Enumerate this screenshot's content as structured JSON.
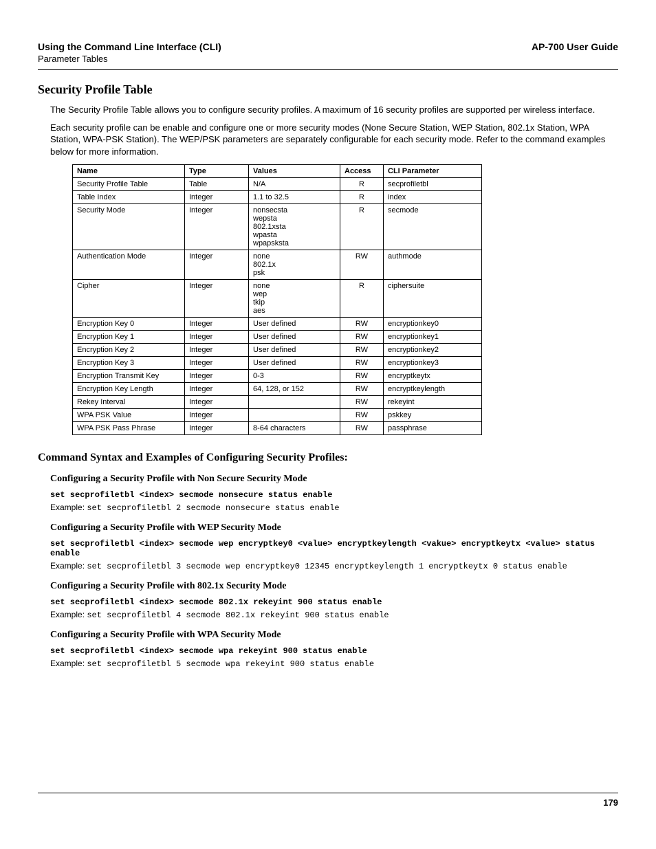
{
  "header": {
    "left": "Using the Command Line Interface (CLI)",
    "right": "AP-700 User Guide",
    "sub": "Parameter Tables"
  },
  "section_title": "Security Profile Table",
  "intro_paragraphs": [
    "The Security Profile Table allows you to configure security profiles. A maximum of 16 security profiles are supported per wireless interface.",
    "Each security profile can be enable and configure one or more security modes (None Secure Station, WEP Station, 802.1x Station, WPA Station, WPA-PSK Station). The WEP/PSK parameters are separately configurable for each security mode. Refer to the command examples below for more information."
  ],
  "table": {
    "columns": [
      "Name",
      "Type",
      "Values",
      "Access",
      "CLI Parameter"
    ],
    "rows": [
      [
        "Security Profile Table",
        "Table",
        "N/A",
        "R",
        "secprofiletbl"
      ],
      [
        "Table Index",
        "Integer",
        "1.1 to 32.5",
        "R",
        "index"
      ],
      [
        "Security Mode",
        "Integer",
        "nonsecsta\nwepsta\n802.1xsta\nwpasta\nwpapsksta",
        "R",
        "secmode"
      ],
      [
        "Authentication Mode",
        "Integer",
        "none\n802.1x\npsk",
        "RW",
        "authmode"
      ],
      [
        "Cipher",
        "Integer",
        "none\nwep\ntkip\naes",
        "R",
        "ciphersuite"
      ],
      [
        "Encryption Key 0",
        "Integer",
        "User defined",
        "RW",
        "encryptionkey0"
      ],
      [
        "Encryption Key 1",
        "Integer",
        "User defined",
        "RW",
        "encryptionkey1"
      ],
      [
        "Encryption Key 2",
        "Integer",
        "User defined",
        "RW",
        "encryptionkey2"
      ],
      [
        "Encryption Key 3",
        "Integer",
        "User defined",
        "RW",
        "encryptionkey3"
      ],
      [
        "Encryption Transmit Key",
        "Integer",
        "0-3",
        "RW",
        "encryptkeytx"
      ],
      [
        "Encryption Key Length",
        "Integer",
        "64, 128, or 152",
        "RW",
        "encryptkeylength"
      ],
      [
        "Rekey Interval",
        "Integer",
        "",
        "RW",
        "rekeyint"
      ],
      [
        "WPA PSK Value",
        "Integer",
        "",
        "RW",
        "pskkey"
      ],
      [
        "WPA PSK Pass Phrase",
        "Integer",
        "8-64 characters",
        "RW",
        "passphrase"
      ]
    ]
  },
  "syntax_heading": "Command Syntax and Examples of Configuring Security Profiles:",
  "examples": [
    {
      "title": "Configuring a Security Profile with Non Secure Security Mode",
      "cmd": "set secprofiletbl <index> secmode nonsecure status enable",
      "example_label": "Example:",
      "example_code": "set secprofiletbl 2 secmode nonsecure status enable"
    },
    {
      "title": "Configuring a Security Profile with WEP Security Mode",
      "cmd": "set secprofiletbl <index> secmode wep encryptkey0 <value> encryptkeylength <vakue> encryptkeytx <value> status enable",
      "example_label": "Example:",
      "example_code": "set secprofiletbl 3 secmode wep encryptkey0 12345 encryptkeylength 1 encryptkeytx 0 status enable"
    },
    {
      "title": "Configuring a Security Profile with 802.1x Security Mode",
      "cmd": "set secprofiletbl <index> secmode 802.1x rekeyint 900 status enable",
      "example_label": "Example:",
      "example_code": "set secprofiletbl 4 secmode 802.1x rekeyint 900 status enable"
    },
    {
      "title": "Configuring a Security Profile with WPA Security Mode",
      "cmd": "set secprofiletbl <index> secmode wpa rekeyint 900 status enable",
      "example_label": "Example:",
      "example_code": "set secprofiletbl 5 secmode wpa rekeyint 900 status enable"
    }
  ],
  "page_number": "179"
}
